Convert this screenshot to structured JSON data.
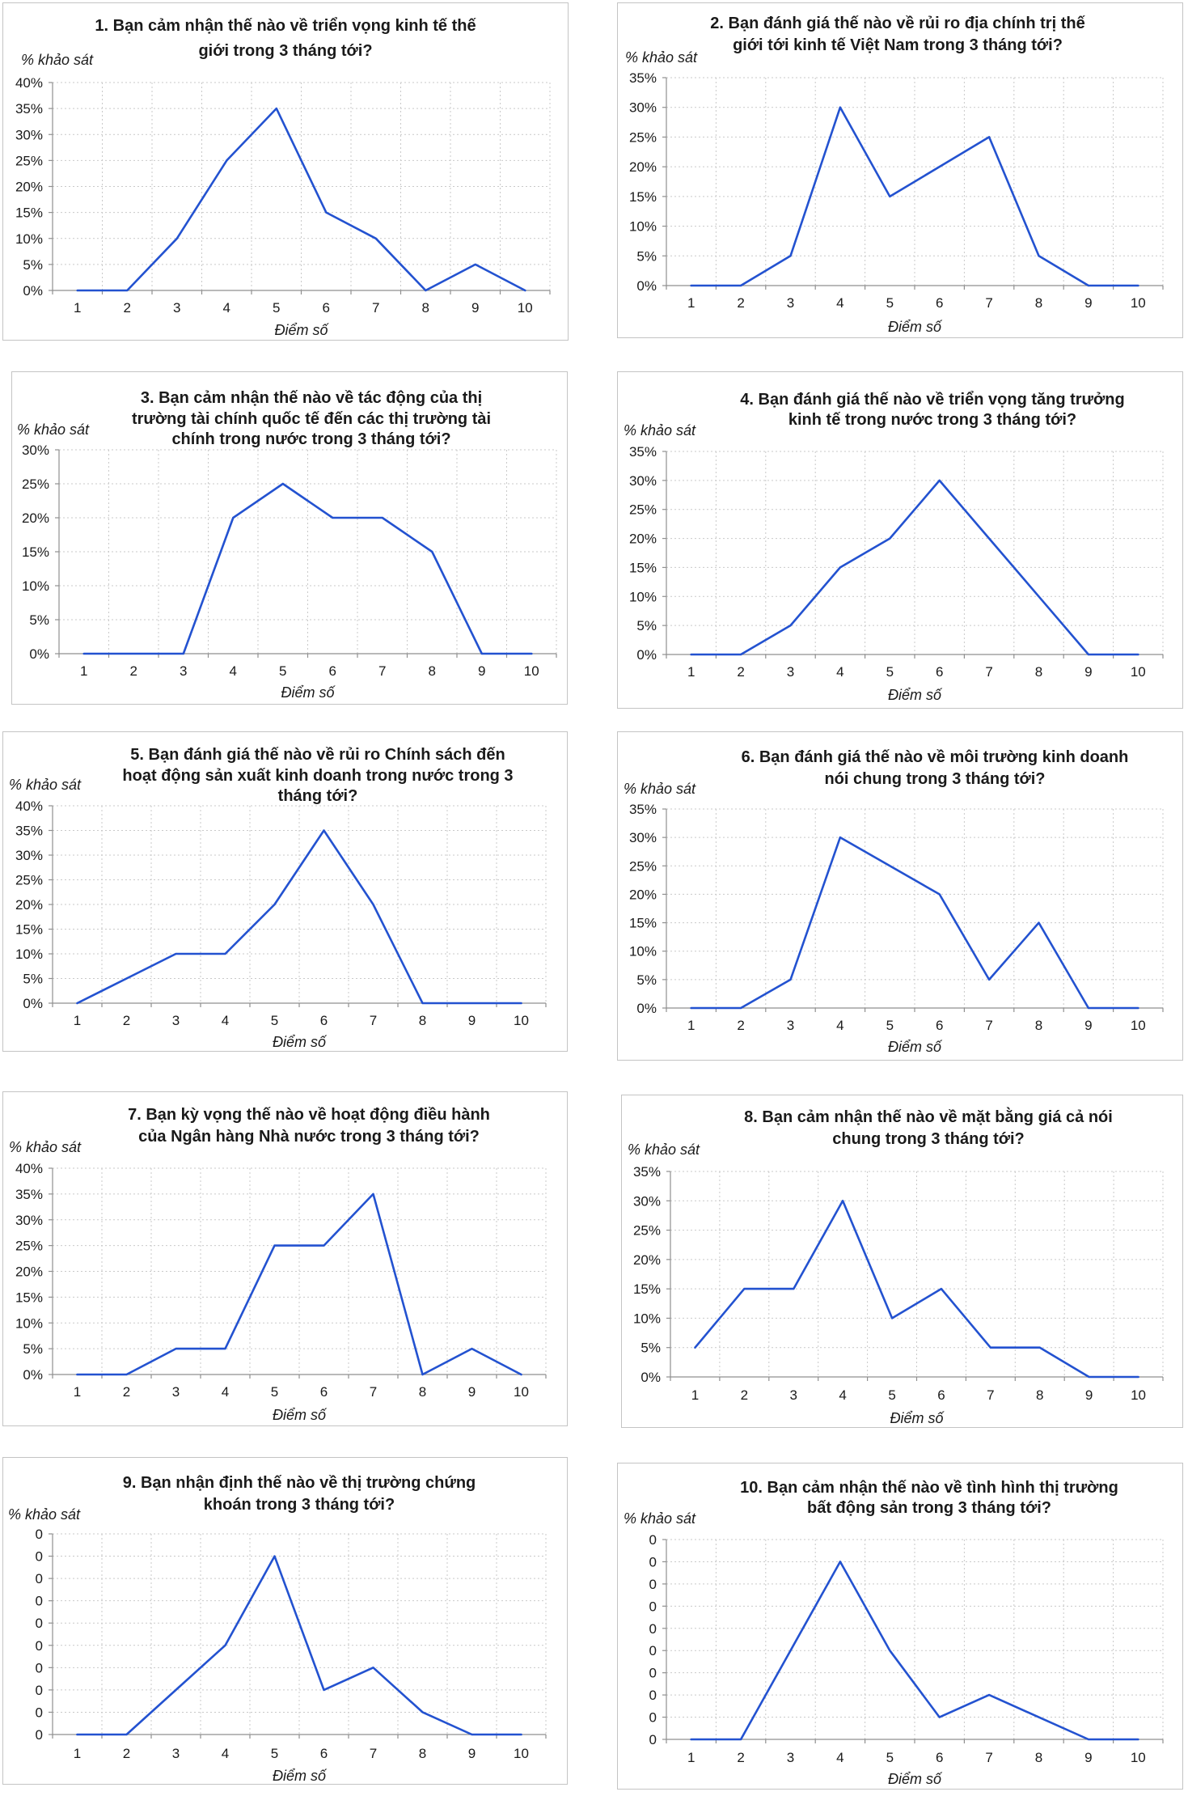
{
  "colors": {
    "series": "#2352d0",
    "grid": "#c9c9c9",
    "panel_border": "#c4c4c4"
  },
  "chart_data": [
    {
      "type": "line",
      "title": "1. Bạn cảm nhận thế nào về triển vọng kinh tế thế\ngiới trong 3 tháng tới?",
      "xlabel": "Điểm số",
      "ylabel": "% khảo sát",
      "categories": [
        "1",
        "2",
        "3",
        "4",
        "5",
        "6",
        "7",
        "8",
        "9",
        "10"
      ],
      "values": [
        0,
        0,
        10,
        25,
        35,
        15,
        10,
        0,
        5,
        0
      ],
      "ylim": [
        0,
        40
      ],
      "yticks": [
        "0%",
        "5%",
        "10%",
        "15%",
        "20%",
        "25%",
        "30%",
        "35%",
        "40%"
      ],
      "grid": true,
      "legend": "none"
    },
    {
      "type": "line",
      "title": "2. Bạn đánh giá thế nào về rủi ro địa chính trị thế\ngiới tới kinh tế Việt Nam trong 3 tháng tới?",
      "xlabel": "Điểm số",
      "ylabel": "% khảo sát",
      "categories": [
        "1",
        "2",
        "3",
        "4",
        "5",
        "6",
        "7",
        "8",
        "9",
        "10"
      ],
      "values": [
        0,
        0,
        5,
        30,
        15,
        20,
        25,
        5,
        0,
        0
      ],
      "ylim": [
        0,
        35
      ],
      "yticks": [
        "0%",
        "5%",
        "10%",
        "15%",
        "20%",
        "25%",
        "30%",
        "35%"
      ],
      "grid": true,
      "legend": "none"
    },
    {
      "type": "line",
      "title": "3. Bạn cảm nhận thế nào về tác động của thị\ntrường tài chính quốc tế đến các thị trường tài\nchính trong nước trong 3 tháng tới?",
      "xlabel": "Điểm số",
      "ylabel": "% khảo sát",
      "categories": [
        "1",
        "2",
        "3",
        "4",
        "5",
        "6",
        "7",
        "8",
        "9",
        "10"
      ],
      "values": [
        0,
        0,
        0,
        20,
        25,
        20,
        20,
        15,
        0,
        0
      ],
      "ylim": [
        0,
        30
      ],
      "yticks": [
        "0%",
        "5%",
        "10%",
        "15%",
        "20%",
        "25%",
        "30%"
      ],
      "grid": true,
      "legend": "none"
    },
    {
      "type": "line",
      "title": "4. Bạn đánh giá thế nào về triển vọng tăng trưởng\nkinh tế trong nước trong 3 tháng tới?",
      "xlabel": "Điểm số",
      "ylabel": "% khảo sát",
      "categories": [
        "1",
        "2",
        "3",
        "4",
        "5",
        "6",
        "7",
        "8",
        "9",
        "10"
      ],
      "values": [
        0,
        0,
        5,
        15,
        20,
        30,
        20,
        10,
        0,
        0
      ],
      "ylim": [
        0,
        35
      ],
      "yticks": [
        "0%",
        "5%",
        "10%",
        "15%",
        "20%",
        "25%",
        "30%",
        "35%"
      ],
      "grid": true,
      "legend": "none"
    },
    {
      "type": "line",
      "title": "5. Bạn đánh giá thế nào về rủi ro Chính sách đến\nhoạt động sản xuất kinh doanh trong nước trong 3\ntháng tới?",
      "xlabel": "Điểm số",
      "ylabel": "% khảo sát",
      "categories": [
        "1",
        "2",
        "3",
        "4",
        "5",
        "6",
        "7",
        "8",
        "9",
        "10"
      ],
      "values": [
        0,
        5,
        10,
        10,
        20,
        35,
        20,
        0,
        0,
        0
      ],
      "ylim": [
        0,
        40
      ],
      "yticks": [
        "0%",
        "5%",
        "10%",
        "15%",
        "20%",
        "25%",
        "30%",
        "35%",
        "40%"
      ],
      "grid": true,
      "legend": "none"
    },
    {
      "type": "line",
      "title": "6. Bạn đánh giá thế nào về môi trường kinh doanh\nnói chung trong 3 tháng tới?",
      "xlabel": "Điểm số",
      "ylabel": "% khảo sát",
      "categories": [
        "1",
        "2",
        "3",
        "4",
        "5",
        "6",
        "7",
        "8",
        "9",
        "10"
      ],
      "values": [
        0,
        0,
        5,
        30,
        25,
        20,
        5,
        15,
        0,
        0
      ],
      "ylim": [
        0,
        35
      ],
      "yticks": [
        "0%",
        "5%",
        "10%",
        "15%",
        "20%",
        "25%",
        "30%",
        "35%"
      ],
      "grid": true,
      "legend": "none"
    },
    {
      "type": "line",
      "title": "7. Bạn kỳ vọng thế nào về hoạt động điều hành\ncủa Ngân hàng Nhà nước trong 3 tháng tới?",
      "xlabel": "Điểm số",
      "ylabel": "% khảo sát",
      "categories": [
        "1",
        "2",
        "3",
        "4",
        "5",
        "6",
        "7",
        "8",
        "9",
        "10"
      ],
      "values": [
        0,
        0,
        5,
        5,
        25,
        25,
        35,
        0,
        5,
        0
      ],
      "ylim": [
        0,
        40
      ],
      "yticks": [
        "0%",
        "5%",
        "10%",
        "15%",
        "20%",
        "25%",
        "30%",
        "35%",
        "40%"
      ],
      "grid": true,
      "legend": "none"
    },
    {
      "type": "line",
      "title": "8. Bạn cảm nhận thế nào về mặt bằng giá cả nói\nchung trong 3 tháng tới?",
      "xlabel": "Điểm số",
      "ylabel": "% khảo sát",
      "categories": [
        "1",
        "2",
        "3",
        "4",
        "5",
        "6",
        "7",
        "8",
        "9",
        "10"
      ],
      "values": [
        5,
        15,
        15,
        30,
        10,
        15,
        5,
        5,
        0,
        0
      ],
      "ylim": [
        0,
        35
      ],
      "yticks": [
        "0%",
        "5%",
        "10%",
        "15%",
        "20%",
        "25%",
        "30%",
        "35%"
      ],
      "grid": true,
      "legend": "none"
    },
    {
      "type": "line",
      "title": "9. Bạn nhận định thế nào về thị trường chứng\nkhoán trong 3 tháng tới?",
      "xlabel": "Điểm số",
      "ylabel": "% khảo sát",
      "categories": [
        "1",
        "2",
        "3",
        "4",
        "5",
        "6",
        "7",
        "8",
        "9",
        "10"
      ],
      "values": [
        0,
        0,
        0.1,
        0.2,
        0.4,
        0.1,
        0.15,
        0.05,
        0,
        0
      ],
      "ylim": [
        0,
        0.45
      ],
      "yticks": [
        "0",
        "0",
        "0",
        "0",
        "0",
        "0",
        "0",
        "0",
        "0",
        "0"
      ],
      "grid": true,
      "legend": "none"
    },
    {
      "type": "line",
      "title": "10. Bạn cảm nhận thế nào về tình hình thị trường\nbất động sản trong 3 tháng tới?",
      "xlabel": "Điểm số",
      "ylabel": "% khảo sát",
      "categories": [
        "1",
        "2",
        "3",
        "4",
        "5",
        "6",
        "7",
        "8",
        "9",
        "10"
      ],
      "values": [
        0,
        0,
        0.2,
        0.4,
        0.2,
        0.05,
        0.1,
        0.05,
        0,
        0
      ],
      "ylim": [
        0,
        0.45
      ],
      "yticks": [
        "0",
        "0",
        "0",
        "0",
        "0",
        "0",
        "0",
        "0",
        "0",
        "0"
      ],
      "grid": true,
      "legend": "none"
    }
  ]
}
